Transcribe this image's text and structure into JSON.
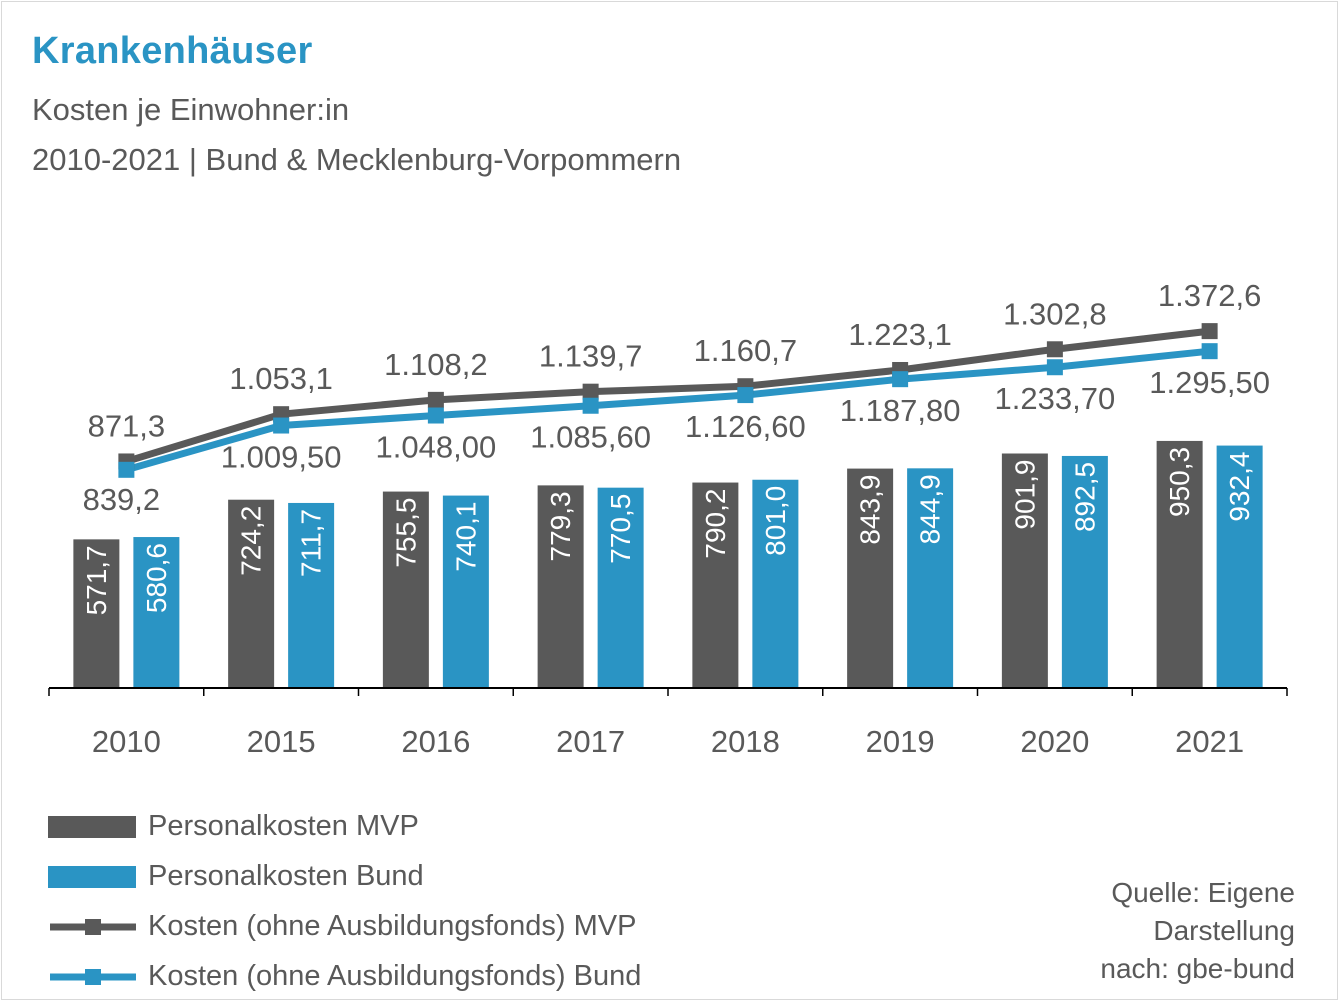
{
  "title": "Krankenhäuser",
  "subtitle_line1": "Kosten je Einwohner:in",
  "subtitle_line2": "2010-2021 | Bund & Mecklenburg-Vorpommern",
  "source_lines": [
    "Quelle: Eigene",
    "Darstellung",
    "nach: gbe-bund"
  ],
  "colors": {
    "mvp": "#595959",
    "bund": "#2a94c4",
    "title": "#2a94c4",
    "text": "#595959"
  },
  "legend": [
    {
      "label": "Personalkosten MVP",
      "kind": "bar",
      "color": "#595959"
    },
    {
      "label": "Personalkosten Bund",
      "kind": "bar",
      "color": "#2a94c4"
    },
    {
      "label": "Kosten (ohne Ausbildungsfonds) MVP",
      "kind": "line",
      "color": "#595959"
    },
    {
      "label": "Kosten (ohne Ausbildungsfonds) Bund",
      "kind": "line",
      "color": "#2a94c4"
    }
  ],
  "chart_data": {
    "type": "bar+line",
    "categories": [
      "2010",
      "2015",
      "2016",
      "2017",
      "2018",
      "2019",
      "2020",
      "2021"
    ],
    "bar_series": [
      {
        "name": "Personalkosten MVP",
        "values": [
          571.7,
          724.2,
          755.5,
          779.3,
          790.2,
          843.9,
          901.9,
          950.3
        ],
        "labels": [
          "571,7",
          "724,2",
          "755,5",
          "779,3",
          "790,2",
          "843,9",
          "901,9",
          "950,3"
        ]
      },
      {
        "name": "Personalkosten Bund",
        "values": [
          580.6,
          711.7,
          740.1,
          770.5,
          801.0,
          844.9,
          892.5,
          932.4
        ],
        "labels": [
          "580,6",
          "711,7",
          "740,1",
          "770,5",
          "801,0",
          "844,9",
          "892,5",
          "932,4"
        ]
      }
    ],
    "line_series": [
      {
        "name": "Kosten (ohne Ausbildungsfonds) MVP",
        "values": [
          871.3,
          1053.1,
          1108.2,
          1139.7,
          1160.7,
          1223.1,
          1302.8,
          1372.6
        ],
        "labels": [
          "871,3",
          "1.053,1",
          "1.108,2",
          "1.139,7",
          "1.160,7",
          "1.223,1",
          "1.302,8",
          "1.372,6"
        ]
      },
      {
        "name": "Kosten (ohne Ausbildungsfonds) Bund",
        "values": [
          839.2,
          1009.5,
          1048.0,
          1085.6,
          1126.6,
          1187.8,
          1233.7,
          1295.5
        ],
        "labels": [
          "839,2",
          "1.009,50",
          "1.048,00",
          "1.085,60",
          "1.126,60",
          "1.187,80",
          "1.233,70",
          "1.295,50"
        ]
      }
    ],
    "grid": false,
    "legend_position": "bottom-left"
  }
}
